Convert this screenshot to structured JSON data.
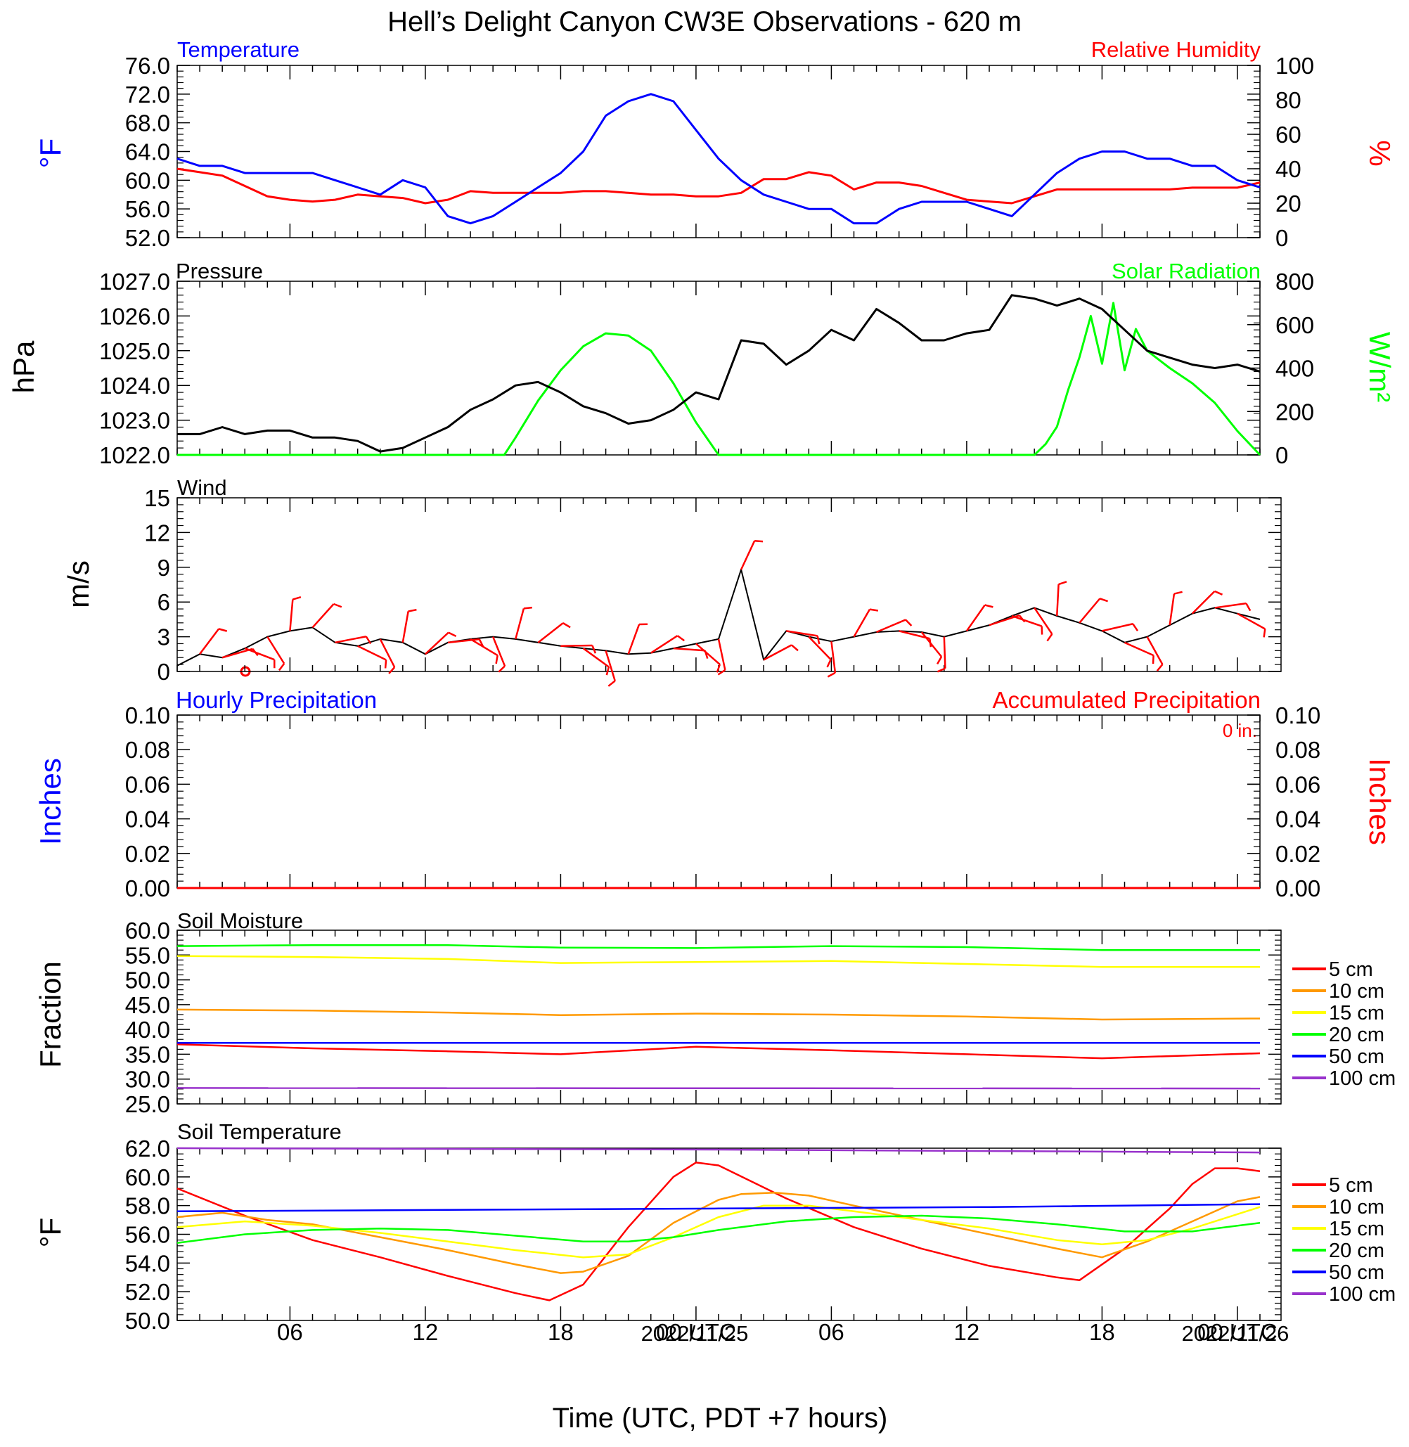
{
  "title": "Hell’s Delight Canyon CW3E Observations - 620 m",
  "xaxis": {
    "title": "Time (UTC, PDT +7 hours)",
    "tick_labels": [
      "06",
      "12",
      "18",
      "00 UTC",
      "06",
      "12",
      "18",
      "00 UTC"
    ],
    "date_labels": [
      "2022/11/25",
      "2022/11/26"
    ]
  },
  "colors": {
    "temperature": "#0000ff",
    "humidity": "#ff0000",
    "pressure": "#000000",
    "solar": "#00ff00",
    "wind": "#000000",
    "barb": "#ff0000",
    "soil_5": "#ff0000",
    "soil_10": "#ff9900",
    "soil_15": "#ffff00",
    "soil_20": "#00ff00",
    "soil_50": "#0000ff",
    "soil_100": "#9933cc"
  },
  "panels": {
    "temp": {
      "left_title": "Temperature",
      "right_title": "Relative Humidity",
      "left_unit": "°F",
      "right_unit": "%",
      "left_ticks": [
        "76.0",
        "72.0",
        "68.0",
        "64.0",
        "60.0",
        "56.0",
        "52.0"
      ],
      "right_ticks": [
        "100",
        "80",
        "60",
        "40",
        "20",
        "0"
      ]
    },
    "pressure": {
      "left_title": "Pressure",
      "right_title": "Solar Radiation",
      "left_unit": "hPa",
      "right_unit": "W/m²",
      "left_ticks": [
        "1027.0",
        "1026.0",
        "1025.0",
        "1024.0",
        "1023.0",
        "1022.0"
      ],
      "right_ticks": [
        "800",
        "600",
        "400",
        "200",
        "0"
      ]
    },
    "wind": {
      "left_title": "Wind",
      "left_unit": "m/s",
      "left_ticks": [
        "15",
        "12",
        "9",
        "6",
        "3",
        "0"
      ]
    },
    "precip": {
      "left_title": "Hourly Precipitation",
      "right_title": "Accumulated Precipitation",
      "total_label": "0 in.",
      "left_unit": "Inches",
      "right_unit": "Inches",
      "left_ticks": [
        "0.10",
        "0.08",
        "0.06",
        "0.04",
        "0.02",
        "0.00"
      ],
      "right_ticks": [
        "0.10",
        "0.08",
        "0.06",
        "0.04",
        "0.02",
        "0.00"
      ]
    },
    "soil_moisture": {
      "left_title": "Soil Moisture",
      "left_unit": "Fraction",
      "left_ticks": [
        "60.0",
        "55.0",
        "50.0",
        "45.0",
        "40.0",
        "35.0",
        "30.0",
        "25.0"
      ],
      "legend": [
        "5 cm",
        "10 cm",
        "15 cm",
        "20 cm",
        "50 cm",
        "100 cm"
      ]
    },
    "soil_temp": {
      "left_title": "Soil Temperature",
      "left_unit": "°F",
      "left_ticks": [
        "62.0",
        "60.0",
        "58.0",
        "56.0",
        "54.0",
        "52.0",
        "50.0"
      ],
      "legend": [
        "5 cm",
        "10 cm",
        "15 cm",
        "20 cm",
        "50 cm",
        "100 cm"
      ]
    }
  },
  "chart_data": [
    {
      "type": "line",
      "title": "Temperature / Relative Humidity",
      "x_unit": "hours since 2022-11-24 01 UTC",
      "xlim": [
        0,
        48
      ],
      "ylim": [
        52,
        76
      ],
      "y2lim": [
        0,
        100
      ],
      "series": [
        {
          "name": "Temperature",
          "axis": "left",
          "x": [
            0,
            1,
            2,
            3,
            4,
            5,
            6,
            7,
            8,
            9,
            10,
            11,
            12,
            13,
            14,
            15,
            16,
            17,
            18,
            19,
            20,
            21,
            22,
            23,
            24,
            25,
            26,
            27,
            28,
            29,
            30,
            31,
            32,
            33,
            34,
            35,
            36,
            37,
            38,
            39,
            40,
            41,
            42,
            43,
            44,
            45,
            46,
            47,
            48
          ],
          "y": [
            63,
            62,
            62,
            61,
            61,
            61,
            61,
            60,
            59,
            58,
            60,
            59,
            55,
            54,
            55,
            57,
            59,
            61,
            64,
            69,
            71,
            72,
            71,
            67,
            63,
            60,
            58,
            57,
            56,
            56,
            54,
            54,
            56,
            57,
            57,
            57,
            56,
            55,
            58,
            61,
            63,
            64,
            64,
            63,
            63,
            62,
            62,
            60,
            59
          ]
        },
        {
          "name": "Relative Humidity",
          "axis": "right",
          "x": [
            0,
            1,
            2,
            3,
            4,
            5,
            6,
            7,
            8,
            9,
            10,
            11,
            12,
            13,
            14,
            15,
            16,
            17,
            18,
            19,
            20,
            21,
            22,
            23,
            24,
            25,
            26,
            27,
            28,
            29,
            30,
            31,
            32,
            33,
            34,
            35,
            36,
            37,
            38,
            39,
            40,
            41,
            42,
            43,
            44,
            45,
            46,
            47,
            48
          ],
          "y": [
            40,
            38,
            36,
            30,
            24,
            22,
            21,
            22,
            25,
            24,
            23,
            20,
            22,
            27,
            26,
            26,
            26,
            26,
            27,
            27,
            26,
            25,
            25,
            24,
            24,
            26,
            34,
            34,
            38,
            36,
            28,
            32,
            32,
            30,
            26,
            22,
            21,
            20,
            24,
            28,
            28,
            28,
            28,
            28,
            28,
            29,
            29,
            29,
            32
          ]
        }
      ]
    },
    {
      "type": "line",
      "title": "Pressure / Solar Radiation",
      "x_unit": "hours since 2022-11-24 01 UTC",
      "xlim": [
        0,
        48
      ],
      "ylim": [
        1022,
        1027
      ],
      "y2lim": [
        0,
        800
      ],
      "series": [
        {
          "name": "Pressure",
          "axis": "left",
          "x": [
            0,
            1,
            2,
            3,
            4,
            5,
            6,
            7,
            8,
            9,
            10,
            11,
            12,
            13,
            14,
            15,
            16,
            17,
            18,
            19,
            20,
            21,
            22,
            23,
            24,
            25,
            26,
            27,
            28,
            29,
            30,
            31,
            32,
            33,
            34,
            35,
            36,
            37,
            38,
            39,
            40,
            41,
            42,
            43,
            44,
            45,
            46,
            47,
            48
          ],
          "y": [
            1022.6,
            1022.6,
            1022.8,
            1022.6,
            1022.7,
            1022.7,
            1022.5,
            1022.5,
            1022.4,
            1022.1,
            1022.2,
            1022.5,
            1022.8,
            1023.3,
            1023.6,
            1024.0,
            1024.1,
            1023.8,
            1023.4,
            1023.2,
            1022.9,
            1023.0,
            1023.3,
            1023.8,
            1023.6,
            1025.3,
            1025.2,
            1024.6,
            1025.0,
            1025.6,
            1025.3,
            1026.2,
            1025.8,
            1025.3,
            1025.3,
            1025.5,
            1025.6,
            1026.6,
            1026.5,
            1026.3,
            1026.5,
            1026.2,
            1025.6,
            1025.0,
            1024.8,
            1024.6,
            1024.5,
            1024.6,
            1024.4
          ]
        },
        {
          "name": "Solar Radiation",
          "axis": "right",
          "x": [
            0,
            14,
            14.5,
            15,
            16,
            17,
            18,
            19,
            20,
            21,
            22,
            23,
            24,
            38,
            38.5,
            39,
            39.5,
            40,
            40.5,
            41,
            41.5,
            42,
            42.5,
            43,
            44,
            45,
            46,
            47,
            48
          ],
          "y": [
            0,
            0,
            0,
            80,
            250,
            390,
            500,
            560,
            550,
            480,
            330,
            150,
            0,
            0,
            50,
            130,
            300,
            450,
            640,
            420,
            700,
            390,
            580,
            480,
            400,
            330,
            240,
            110,
            0
          ]
        }
      ]
    },
    {
      "type": "line",
      "title": "Wind",
      "x_unit": "hours since 2022-11-24 01 UTC",
      "xlim": [
        0,
        48
      ],
      "ylim": [
        0,
        15
      ],
      "series": [
        {
          "name": "Wind speed",
          "x": [
            0,
            1,
            2,
            3,
            4,
            5,
            6,
            7,
            8,
            9,
            10,
            11,
            12,
            13,
            14,
            15,
            16,
            17,
            18,
            19,
            20,
            21,
            22,
            23,
            24,
            25,
            26,
            27,
            28,
            29,
            30,
            31,
            32,
            33,
            34,
            35,
            36,
            37,
            38,
            39,
            40,
            41,
            42,
            43,
            44,
            45,
            46,
            47,
            48
          ],
          "y": [
            0.5,
            1.5,
            1.2,
            2.0,
            3.0,
            3.5,
            3.8,
            2.5,
            2.2,
            2.8,
            2.5,
            1.5,
            2.5,
            2.8,
            3.0,
            2.8,
            2.5,
            2.2,
            2.0,
            1.8,
            1.5,
            1.6,
            2.0,
            2.4,
            2.8,
            8.8,
            1.0,
            3.5,
            3.0,
            2.6,
            3.0,
            3.4,
            3.5,
            3.4,
            3.0,
            3.5,
            4.0,
            4.8,
            5.5,
            4.8,
            4.2,
            3.5,
            2.5,
            3.0,
            4.0,
            5.0,
            5.5,
            5.0,
            4.5
          ]
        }
      ]
    },
    {
      "type": "line",
      "title": "Hourly Precipitation / Accumulated Precipitation",
      "x_unit": "hours since 2022-11-24 01 UTC",
      "xlim": [
        0,
        48
      ],
      "ylim": [
        0,
        0.1
      ],
      "series": [
        {
          "name": "Hourly Precipitation",
          "x": [
            0,
            48
          ],
          "y": [
            0,
            0
          ]
        },
        {
          "name": "Accumulated Precipitation",
          "x": [
            0,
            48
          ],
          "y": [
            0,
            0
          ]
        }
      ]
    },
    {
      "type": "line",
      "title": "Soil Moisture",
      "x_unit": "hours since 2022-11-24 01 UTC",
      "xlim": [
        0,
        48
      ],
      "ylim": [
        25,
        60
      ],
      "series": [
        {
          "name": "5 cm",
          "x": [
            0,
            6,
            12,
            17,
            23,
            29,
            35,
            41,
            48
          ],
          "y": [
            37,
            36.2,
            35.6,
            35,
            36.5,
            35.8,
            35,
            34.2,
            35.2
          ]
        },
        {
          "name": "10 cm",
          "x": [
            0,
            6,
            12,
            17,
            23,
            29,
            35,
            41,
            48
          ],
          "y": [
            44,
            43.8,
            43.4,
            42.9,
            43.2,
            43,
            42.6,
            42,
            42.2
          ]
        },
        {
          "name": "15 cm",
          "x": [
            0,
            6,
            12,
            17,
            23,
            29,
            35,
            41,
            48
          ],
          "y": [
            54.8,
            54.6,
            54.2,
            53.4,
            53.6,
            53.8,
            53.2,
            52.6,
            52.6
          ]
        },
        {
          "name": "20 cm",
          "x": [
            0,
            6,
            12,
            17,
            23,
            29,
            35,
            41,
            48
          ],
          "y": [
            56.8,
            57,
            57,
            56.5,
            56.4,
            56.8,
            56.6,
            56,
            56
          ]
        },
        {
          "name": "50 cm",
          "x": [
            0,
            48
          ],
          "y": [
            37.3,
            37.3
          ]
        },
        {
          "name": "100 cm",
          "x": [
            0,
            48
          ],
          "y": [
            28.2,
            28.1
          ]
        }
      ]
    },
    {
      "type": "line",
      "title": "Soil Temperature",
      "x_unit": "hours since 2022-11-24 01 UTC",
      "xlim": [
        0,
        48
      ],
      "ylim": [
        50,
        62
      ],
      "series": [
        {
          "name": "5 cm",
          "x": [
            0,
            3,
            6,
            9,
            12,
            15,
            16.5,
            18,
            20,
            22,
            23,
            24,
            27,
            30,
            33,
            36,
            39,
            40,
            42,
            44,
            45,
            46,
            47,
            48
          ],
          "y": [
            59.2,
            57.3,
            55.6,
            54.4,
            53.1,
            51.9,
            51.4,
            52.5,
            56.5,
            60,
            61,
            60.8,
            58.5,
            56.5,
            55,
            53.8,
            53,
            52.8,
            55,
            57.8,
            59.5,
            60.6,
            60.6,
            60.4
          ]
        },
        {
          "name": "10 cm",
          "x": [
            0,
            2,
            4,
            6,
            9,
            12,
            15,
            17,
            18,
            20,
            22,
            24,
            25,
            26.5,
            28,
            30,
            33,
            36,
            39,
            41,
            43,
            45,
            47,
            48
          ],
          "y": [
            57.2,
            57.5,
            57,
            56.7,
            55.8,
            54.9,
            53.9,
            53.3,
            53.4,
            54.5,
            56.8,
            58.4,
            58.8,
            58.9,
            58.7,
            58,
            57,
            56,
            55,
            54.4,
            55.5,
            56.9,
            58.3,
            58.6
          ]
        },
        {
          "name": "15 cm",
          "x": [
            0,
            3,
            6,
            9,
            12,
            15,
            18,
            20,
            22,
            24,
            26,
            28,
            30,
            33,
            36,
            39,
            41,
            43,
            45,
            48
          ],
          "y": [
            56.5,
            56.9,
            56.6,
            56.1,
            55.5,
            54.9,
            54.4,
            54.6,
            55.8,
            57.2,
            58,
            58,
            57.6,
            57,
            56.4,
            55.6,
            55.3,
            55.6,
            56.4,
            57.9
          ]
        },
        {
          "name": "20 cm",
          "x": [
            0,
            3,
            6,
            9,
            12,
            15,
            18,
            20,
            22,
            24,
            27,
            30,
            33,
            36,
            39,
            42,
            45,
            48
          ],
          "y": [
            55.4,
            56,
            56.3,
            56.4,
            56.3,
            55.9,
            55.5,
            55.5,
            55.8,
            56.3,
            56.9,
            57.2,
            57.3,
            57.1,
            56.7,
            56.2,
            56.2,
            56.8
          ]
        },
        {
          "name": "50 cm",
          "x": [
            0,
            12,
            24,
            36,
            48
          ],
          "y": [
            57.6,
            57.7,
            57.8,
            57.9,
            58.1
          ]
        },
        {
          "name": "100 cm",
          "x": [
            0,
            24,
            48
          ],
          "y": [
            62,
            61.9,
            61.7
          ]
        }
      ]
    }
  ]
}
